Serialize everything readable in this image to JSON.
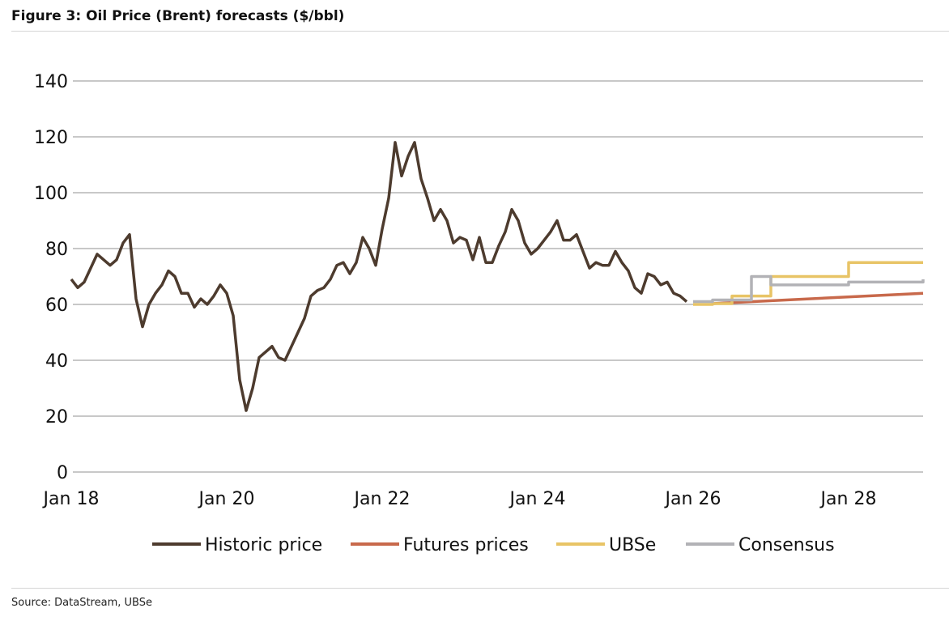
{
  "title": "Figure 3: Oil Price (Brent) forecasts ($/bbl)",
  "source": "Source: DataStream, UBSe",
  "colors": {
    "historic": "#4d3b2e",
    "futures": "#c8694b",
    "ubse": "#e8c466",
    "consensus": "#b2b2b6",
    "grid": "#a8a8a8"
  },
  "chart_data": {
    "type": "line",
    "title": "Oil Price (Brent) forecasts ($/bbl)",
    "xlabel": "",
    "ylabel": "$/bbl",
    "ylim": [
      0,
      140
    ],
    "yticks": [
      "0",
      "20",
      "40",
      "60",
      "80",
      "100",
      "120",
      "140"
    ],
    "x_unit": "months since Jan 2018",
    "xlim": [
      0,
      131.5
    ],
    "xticks": [
      {
        "m": 0,
        "label": "Jan 18"
      },
      {
        "m": 24,
        "label": "Jan 20"
      },
      {
        "m": 48,
        "label": "Jan 22"
      },
      {
        "m": 72,
        "label": "Jan 24"
      },
      {
        "m": 96,
        "label": "Jan 26"
      },
      {
        "m": 120,
        "label": "Jan 28"
      }
    ],
    "grid": true,
    "legend": "bottom",
    "series": [
      {
        "name": "Historic price",
        "key": "historic",
        "step": false,
        "values": [
          69,
          66,
          68,
          73,
          78,
          76,
          74,
          76,
          82,
          85,
          62,
          52,
          60,
          64,
          67,
          72,
          70,
          64,
          64,
          59,
          62,
          60,
          63,
          67,
          64,
          56,
          33,
          22,
          30,
          41,
          43,
          45,
          41,
          40,
          45,
          50,
          55,
          63,
          65,
          66,
          69,
          74,
          75,
          71,
          75,
          84,
          80,
          74,
          87,
          98,
          118,
          106,
          113,
          118,
          105,
          98,
          90,
          94,
          90,
          82,
          84,
          83,
          76,
          84,
          75,
          75,
          81,
          86,
          94,
          90,
          82,
          78,
          80,
          83,
          86,
          90,
          83,
          83,
          85,
          79,
          73,
          75,
          74,
          74,
          79,
          75,
          72,
          66,
          64,
          71,
          70,
          67,
          68,
          64,
          63,
          61
        ]
      },
      {
        "name": "Futures prices",
        "key": "futures",
        "step": false,
        "points": [
          [
            99,
            60.3
          ],
          [
            131.5,
            64
          ]
        ]
      },
      {
        "name": "UBSe",
        "key": "ubse",
        "step": true,
        "points": [
          [
            96,
            60
          ],
          [
            99,
            60.3
          ],
          [
            102,
            63
          ],
          [
            108,
            70
          ],
          [
            120,
            75
          ],
          [
            131.5,
            75
          ]
        ]
      },
      {
        "name": "Consensus",
        "key": "consensus",
        "step": true,
        "points": [
          [
            96,
            61
          ],
          [
            99,
            61.6
          ],
          [
            105,
            70
          ],
          [
            108,
            67
          ],
          [
            120,
            68
          ],
          [
            131.5,
            68
          ],
          [
            131.5,
            69
          ]
        ]
      }
    ]
  }
}
